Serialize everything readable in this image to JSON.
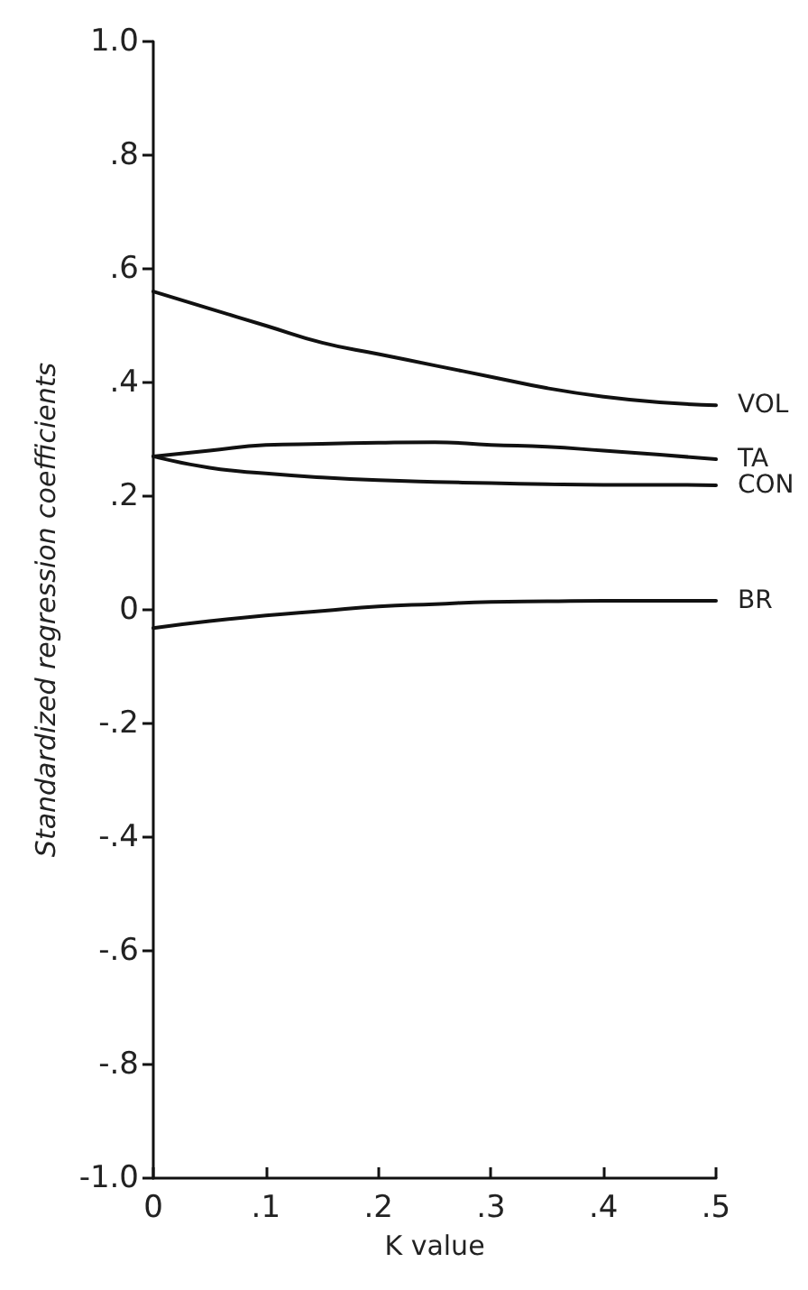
{
  "chart_data": {
    "type": "line",
    "xlabel": "K value",
    "ylabel": "Standardized regression coefficients",
    "x": [
      0,
      0.05,
      0.1,
      0.15,
      0.2,
      0.25,
      0.3,
      0.35,
      0.4,
      0.45,
      0.5
    ],
    "series": [
      {
        "name": "VOL",
        "color": "#111111",
        "values": [
          0.56,
          0.53,
          0.5,
          0.47,
          0.45,
          0.43,
          0.41,
          0.39,
          0.375,
          0.365,
          0.36
        ]
      },
      {
        "name": "TA",
        "color": "#111111",
        "values": [
          0.27,
          0.28,
          0.29,
          0.292,
          0.294,
          0.295,
          0.29,
          0.287,
          0.28,
          0.273,
          0.265
        ]
      },
      {
        "name": "CON",
        "color": "#111111",
        "values": [
          0.27,
          0.25,
          0.24,
          0.233,
          0.228,
          0.225,
          0.223,
          0.221,
          0.22,
          0.22,
          0.219
        ]
      },
      {
        "name": "BR",
        "color": "#111111",
        "values": [
          -0.032,
          -0.02,
          -0.01,
          -0.002,
          0.006,
          0.01,
          0.014,
          0.015,
          0.016,
          0.016,
          0.016
        ]
      }
    ],
    "xlim": [
      0,
      0.5
    ],
    "xticks": [
      0,
      {
        "value": 0.1,
        "label": ".1"
      },
      {
        "value": 0.2,
        "label": ".2"
      },
      {
        "value": 0.3,
        "label": ".3"
      },
      {
        "value": 0.4,
        "label": ".4"
      },
      {
        "value": 0.5,
        "label": ".5"
      }
    ],
    "ylim": [
      -1,
      1
    ],
    "yticks": [
      {
        "value": -1,
        "label": "-1.0"
      },
      {
        "value": -0.8,
        "label": "-.8"
      },
      {
        "value": -0.6,
        "label": "-.6"
      },
      {
        "value": -0.4,
        "label": "-.4"
      },
      {
        "value": -0.2,
        "label": "-.2"
      },
      0,
      {
        "value": 0.2,
        "label": ".2"
      },
      {
        "value": 0.4,
        "label": ".4"
      },
      {
        "value": 0.6,
        "label": ".6"
      },
      {
        "value": 0.8,
        "label": ".8"
      },
      {
        "value": 1,
        "label": "1.0"
      }
    ],
    "grid": false,
    "legend": false,
    "marker": "none",
    "line_style": "solid"
  }
}
